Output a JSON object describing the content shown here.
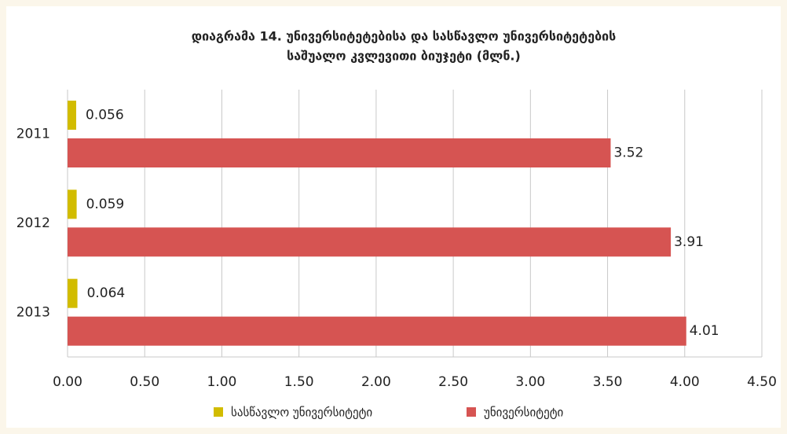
{
  "chart_data": {
    "type": "bar",
    "orientation": "horizontal",
    "title": [
      "დიაგრამა 14. უნივერსიტეტებისა და სასწავლო უნივერსიტეტების",
      "საშუალო კვლევითი ბიუჯეტი (მლნ.)"
    ],
    "categories": [
      "2011",
      "2012",
      "2013"
    ],
    "series": [
      {
        "name": "სასწავლო უნივერსიტეტი",
        "color": "#d2bc00",
        "values": [
          0.056,
          0.059,
          0.064
        ]
      },
      {
        "name": "უნივერსიტეტი",
        "color": "#d65452",
        "values": [
          3.52,
          3.91,
          4.01
        ]
      }
    ],
    "xlim": [
      0,
      4.5
    ],
    "xticks": [
      {
        "value": 0,
        "label": "0.00"
      },
      {
        "value": 0.5,
        "label": "0.50"
      },
      {
        "value": 1,
        "label": "1.00"
      },
      {
        "value": 1.5,
        "label": "1.50"
      },
      {
        "value": 2,
        "label": "2.00"
      },
      {
        "value": 2.5,
        "label": "2.50"
      },
      {
        "value": 3,
        "label": "3.00"
      },
      {
        "value": 3.5,
        "label": "3.50"
      },
      {
        "value": 4,
        "label": "4.00"
      },
      {
        "value": 4.5,
        "label": "4.50"
      }
    ],
    "grid": true,
    "legend": "bottom"
  }
}
